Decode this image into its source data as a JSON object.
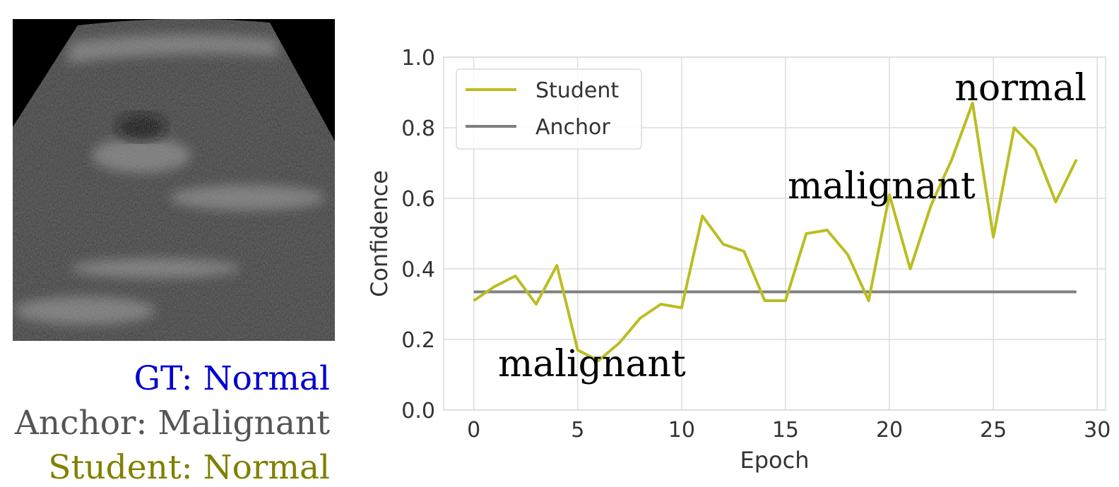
{
  "image_caption": [
    {
      "text": "GT: Normal",
      "color": "#0000cc"
    },
    {
      "text": "Anchor: Malignant",
      "color": "#555555"
    },
    {
      "text": "Student: Normal",
      "color": "#808000"
    }
  ],
  "chart_data": {
    "type": "line",
    "x_label": "Epoch",
    "y_label": "Confidence",
    "x": [
      0,
      1,
      2,
      3,
      4,
      5,
      6,
      7,
      8,
      9,
      10,
      11,
      12,
      13,
      14,
      15,
      16,
      17,
      18,
      19,
      20,
      21,
      22,
      23,
      24,
      25,
      26,
      27,
      28,
      29
    ],
    "series": [
      {
        "name": "Student",
        "color": "#bcbd22",
        "values": [
          0.31,
          0.35,
          0.38,
          0.3,
          0.41,
          0.17,
          0.14,
          0.19,
          0.26,
          0.3,
          0.29,
          0.55,
          0.47,
          0.45,
          0.31,
          0.31,
          0.5,
          0.51,
          0.44,
          0.31,
          0.61,
          0.4,
          0.58,
          0.71,
          0.87,
          0.49,
          0.8,
          0.74,
          0.59,
          0.71
        ]
      },
      {
        "name": "Anchor",
        "color": "#7f7f7f",
        "values": [
          0.335,
          0.335,
          0.335,
          0.335,
          0.335,
          0.335,
          0.335,
          0.335,
          0.335,
          0.335,
          0.335,
          0.335,
          0.335,
          0.335,
          0.335,
          0.335,
          0.335,
          0.335,
          0.335,
          0.335,
          0.335,
          0.335,
          0.335,
          0.335,
          0.335,
          0.335,
          0.335,
          0.335,
          0.335,
          0.335
        ]
      }
    ],
    "annotations": [
      "malignant",
      "malignant",
      "normal"
    ],
    "xlim": [
      -1.45,
      30.4
    ],
    "ylim": [
      0,
      1.0
    ],
    "xticks": [
      0,
      5,
      10,
      15,
      20,
      25,
      30
    ],
    "yticks": [
      {
        "value": 0,
        "label": "0.0"
      },
      {
        "value": 0.2,
        "label": "0.2"
      },
      {
        "value": 0.4,
        "label": "0.4"
      },
      {
        "value": 0.6,
        "label": "0.6"
      },
      {
        "value": 0.8,
        "label": "0.8"
      },
      {
        "value": 1.0,
        "label": "1.0"
      }
    ],
    "grid": true,
    "legend": "upper left"
  }
}
